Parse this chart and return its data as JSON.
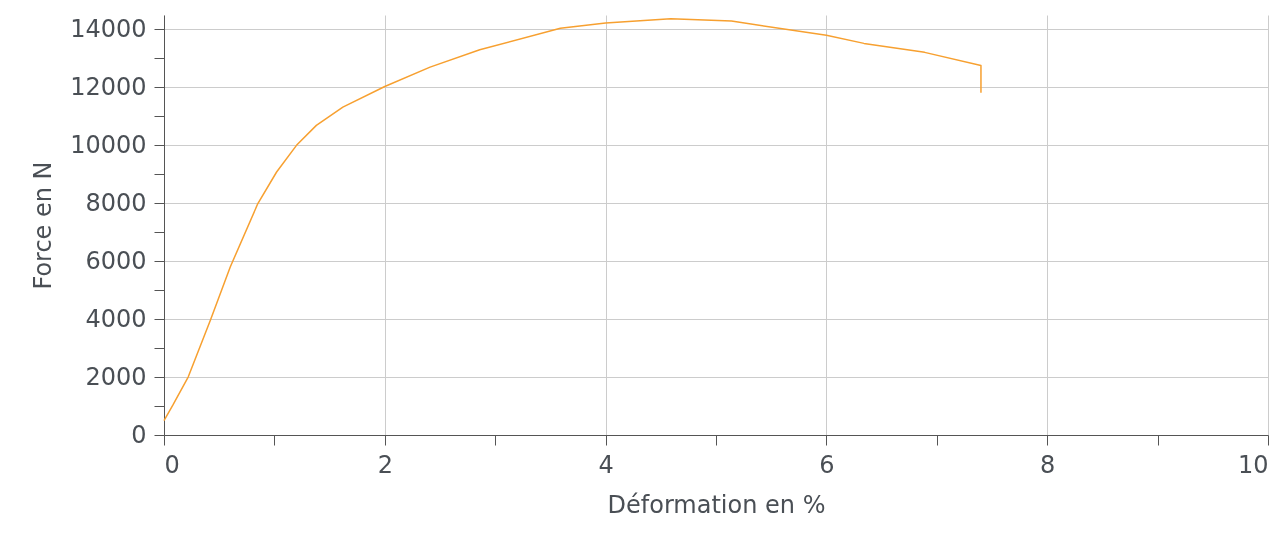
{
  "chart_data": {
    "type": "line",
    "xlabel": "Déformation en %",
    "ylabel": "Force en N",
    "x": [
      0,
      0.08,
      0.22,
      0.42,
      0.6,
      0.85,
      1.02,
      1.2,
      1.38,
      1.62,
      2.0,
      2.41,
      2.86,
      3.59,
      4.0,
      4.59,
      5.14,
      6.0,
      6.34,
      6.89,
      7.4,
      7.4
    ],
    "series": [
      {
        "color": "#f7a030",
        "values": [
          500,
          1030,
          2010,
          3960,
          5800,
          7990,
          9080,
          10000,
          10690,
          11320,
          12030,
          12700,
          13300,
          14040,
          14220,
          14370,
          14290,
          13800,
          13520,
          13210,
          12760,
          11820
        ]
      }
    ],
    "xlim": [
      0,
      10
    ],
    "ylim": [
      0,
      14500
    ],
    "xticks": [
      0,
      {
        "value": 1,
        "label": null
      },
      2,
      {
        "value": 3,
        "label": null
      },
      4,
      {
        "value": 5,
        "label": null
      },
      6,
      {
        "value": 7,
        "label": null
      },
      8,
      {
        "value": 9,
        "label": null
      },
      10
    ],
    "yticks": [
      0,
      {
        "value": 1000,
        "label": null
      },
      2000,
      {
        "value": 3000,
        "label": null
      },
      4000,
      {
        "value": 5000,
        "label": null
      },
      6000,
      {
        "value": 7000,
        "label": null
      },
      8000,
      {
        "value": 9000,
        "label": null
      },
      10000,
      {
        "value": 11000,
        "label": null
      },
      12000,
      {
        "value": 13000,
        "label": null
      },
      14000
    ],
    "grid": true,
    "marker": "none",
    "line_style": "solid"
  }
}
